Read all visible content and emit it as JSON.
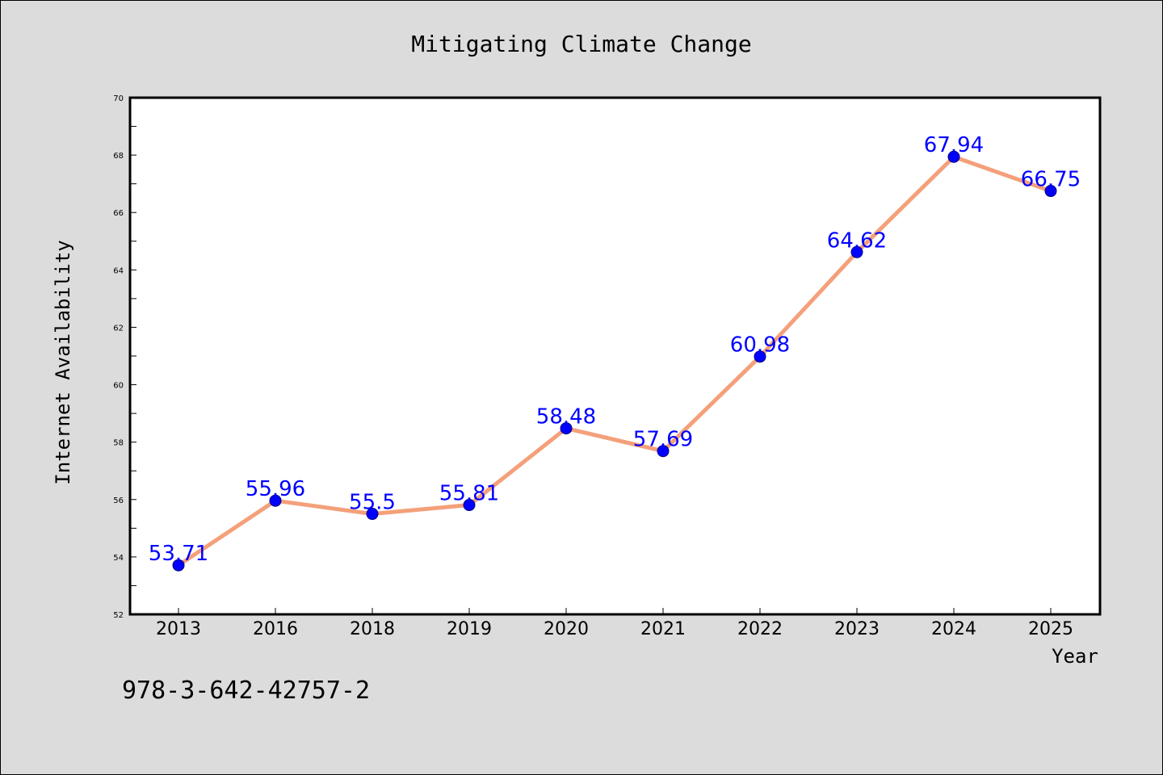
{
  "chart_data": {
    "type": "line",
    "title": "Mitigating Climate Change",
    "xlabel": "Year",
    "ylabel": "Internet Availability",
    "categories": [
      "2013",
      "2016",
      "2018",
      "2019",
      "2020",
      "2021",
      "2022",
      "2023",
      "2024",
      "2025"
    ],
    "values": [
      53.71,
      55.96,
      55.5,
      55.81,
      58.48,
      57.69,
      60.98,
      64.62,
      67.94,
      66.75
    ],
    "data_labels": [
      "53.71",
      "55.96",
      "55.5",
      "55.81",
      "58.48",
      "57.69",
      "60.98",
      "64.62",
      "67.94",
      "66.75"
    ],
    "y_ticks": [
      "52",
      "54",
      "56",
      "58",
      "60",
      "62",
      "64",
      "66",
      "68",
      "70"
    ],
    "ylim": [
      52,
      70
    ],
    "grid": false,
    "legend": "none",
    "colors": {
      "line": "#f4a07a",
      "marker": "#0000ff",
      "label": "#0000ff",
      "background": "#dcdcdc",
      "plot_area": "#ffffff"
    }
  },
  "footer": {
    "isbn": "978-3-642-42757-2"
  }
}
